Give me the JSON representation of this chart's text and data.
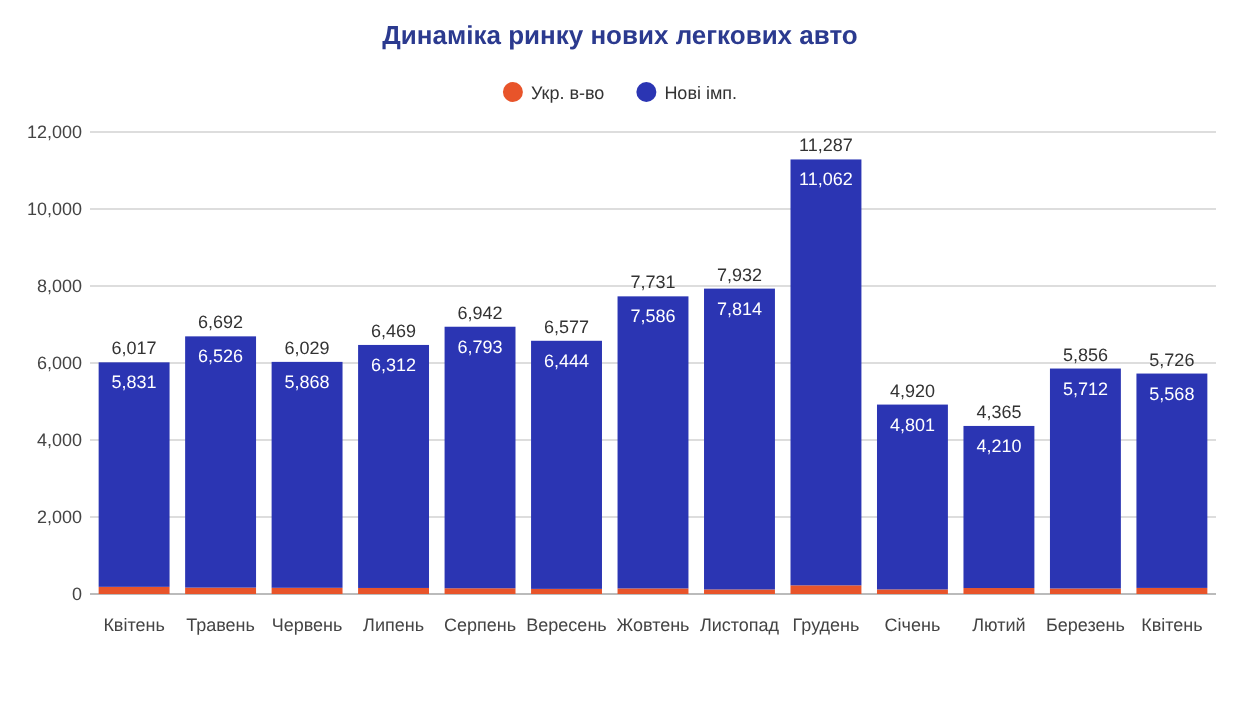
{
  "chart_data": {
    "type": "bar",
    "title": "Динаміка ринку нових легкових авто",
    "stacked": true,
    "legend": "top",
    "grid": "y",
    "categories": [
      "Квітень",
      "Травень",
      "Червень",
      "Липень",
      "Серпень",
      "Вересень",
      "Жовтень",
      "Листопад",
      "Грудень",
      "Січень",
      "Лютий",
      "Березень",
      "Квітень"
    ],
    "series": [
      {
        "name": "Укр. в-во",
        "color": "#e8542a",
        "values": [
          186,
          166,
          161,
          157,
          149,
          133,
          145,
          118,
          225,
          119,
          155,
          144,
          158
        ]
      },
      {
        "name": "Нові імп.",
        "color": "#2b35b3",
        "values": [
          5831,
          6526,
          5868,
          6312,
          6793,
          6444,
          7586,
          7814,
          11062,
          4801,
          4210,
          5712,
          5568
        ],
        "value_labels": [
          "5,831",
          "6,526",
          "5,868",
          "6,312",
          "6,793",
          "6,444",
          "7,586",
          "7,814",
          "11,062",
          "4,801",
          "4,210",
          "5,712",
          "5,568"
        ]
      }
    ],
    "totals": [
      "6,017",
      "6,692",
      "6,029",
      "6,469",
      "6,942",
      "6,577",
      "7,731",
      "7,932",
      "11,287",
      "4,920",
      "4,365",
      "5,856",
      "5,726"
    ],
    "ylim": [
      0,
      12000
    ],
    "yticks": [
      0,
      {
        "value": 2000,
        "label": "2,000"
      },
      {
        "value": 4000,
        "label": "4,000"
      },
      {
        "value": 6000,
        "label": "6,000"
      },
      {
        "value": 8000,
        "label": "8,000"
      },
      {
        "value": 10000,
        "label": "10,000"
      },
      {
        "value": 12000,
        "label": "12,000"
      }
    ]
  }
}
